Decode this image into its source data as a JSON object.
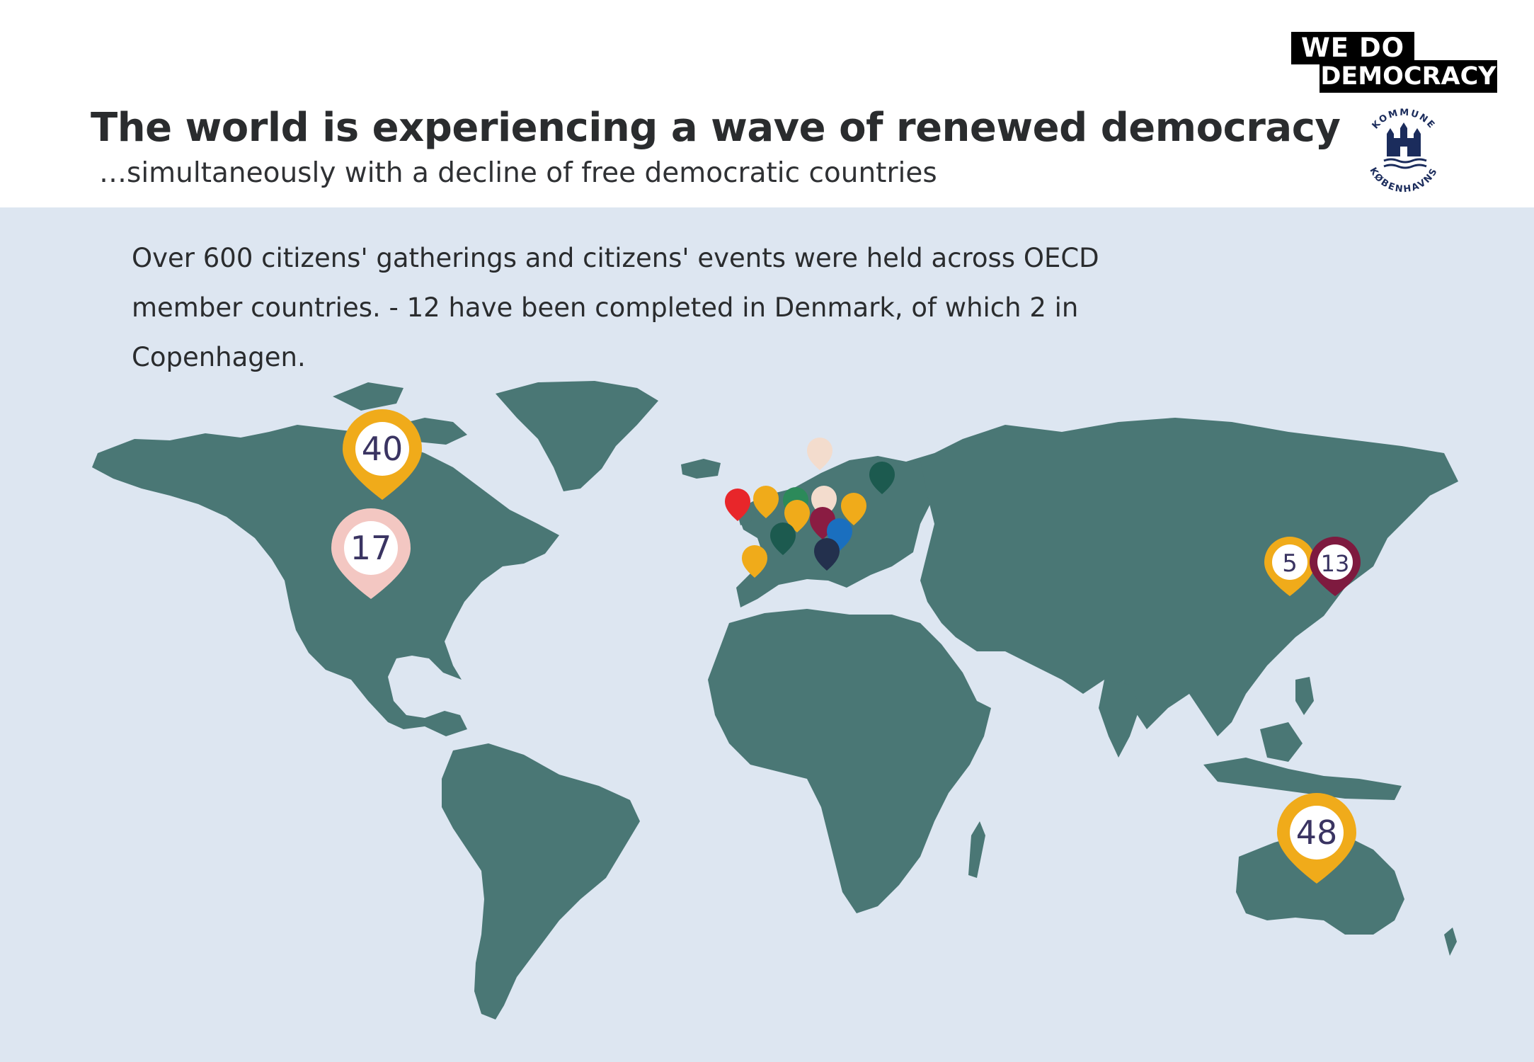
{
  "header": {
    "title": "The world is experiencing a wave of renewed democracy",
    "subtitle": "…simultaneously with a decline of free democratic countries"
  },
  "logos": {
    "brand_line1": "WE  DO",
    "brand_line2": "DEMOCRACY",
    "seal_top": "KOMMUNE",
    "seal_bottom": "KØBENHAVNS"
  },
  "intro": {
    "text": "Over 600 citizens' gatherings and citizens' events were held across OECD member countries. - 12 have been completed in Denmark, of which 2 in Copenhagen."
  },
  "markers": [
    {
      "name": "north-america-marker",
      "label": "40",
      "color": "#f0ab1a",
      "inner": "#ffffff"
    },
    {
      "name": "usa-marker",
      "label": "17",
      "color": "#f3c7c2",
      "inner": "#ffffff"
    },
    {
      "name": "korea-marker",
      "label": "5",
      "color": "#f0ab1a",
      "inner": "#ffffff"
    },
    {
      "name": "japan-marker",
      "label": "13",
      "color": "#7e1a3f",
      "inner": "#ffffff"
    },
    {
      "name": "australia-marker",
      "label": "48",
      "color": "#f0ab1a",
      "inner": "#ffffff"
    }
  ],
  "europe_pins": [
    {
      "name": "norway-pin",
      "color": "#f3dccd"
    },
    {
      "name": "finland-pin",
      "color": "#1c5a4f"
    },
    {
      "name": "ireland-pin",
      "color": "#e8262a"
    },
    {
      "name": "uk-pin",
      "color": "#f0ab1a"
    },
    {
      "name": "netherlands-pin",
      "color": "#2c8a5a"
    },
    {
      "name": "denmark-pin",
      "color": "#f3dccd"
    },
    {
      "name": "poland-pin",
      "color": "#f0ab1a"
    },
    {
      "name": "belgium-pin",
      "color": "#f0ab1a"
    },
    {
      "name": "germany-pin",
      "color": "#8a1c42"
    },
    {
      "name": "austria-pin",
      "color": "#1a6fbf"
    },
    {
      "name": "france-pin",
      "color": "#1c5a4f"
    },
    {
      "name": "italy-pin",
      "color": "#23304d"
    },
    {
      "name": "spain-pin",
      "color": "#f0ab1a"
    }
  ],
  "colors": {
    "land": "#4a7775",
    "ocean": "#dde6f1",
    "marker_text": "#3a3462",
    "title": "#2a2c2e"
  }
}
